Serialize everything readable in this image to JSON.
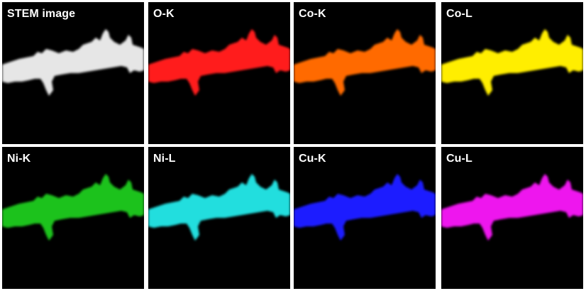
{
  "figure": {
    "panels": [
      {
        "id": "stem",
        "label": "STEM image",
        "color": "#e6e6e6"
      },
      {
        "id": "o-k",
        "label": "O-K",
        "color": "#ff1a1a"
      },
      {
        "id": "co-k",
        "label": "Co-K",
        "color": "#ff6a00"
      },
      {
        "id": "co-l",
        "label": "Co-L",
        "color": "#ffee00"
      },
      {
        "id": "ni-k",
        "label": "Ni-K",
        "color": "#1ec21e"
      },
      {
        "id": "ni-l",
        "label": "Ni-L",
        "color": "#22dede"
      },
      {
        "id": "cu-k",
        "label": "Cu-K",
        "color": "#1a1aff"
      },
      {
        "id": "cu-l",
        "label": "Cu-L",
        "color": "#ee16ee"
      }
    ]
  }
}
